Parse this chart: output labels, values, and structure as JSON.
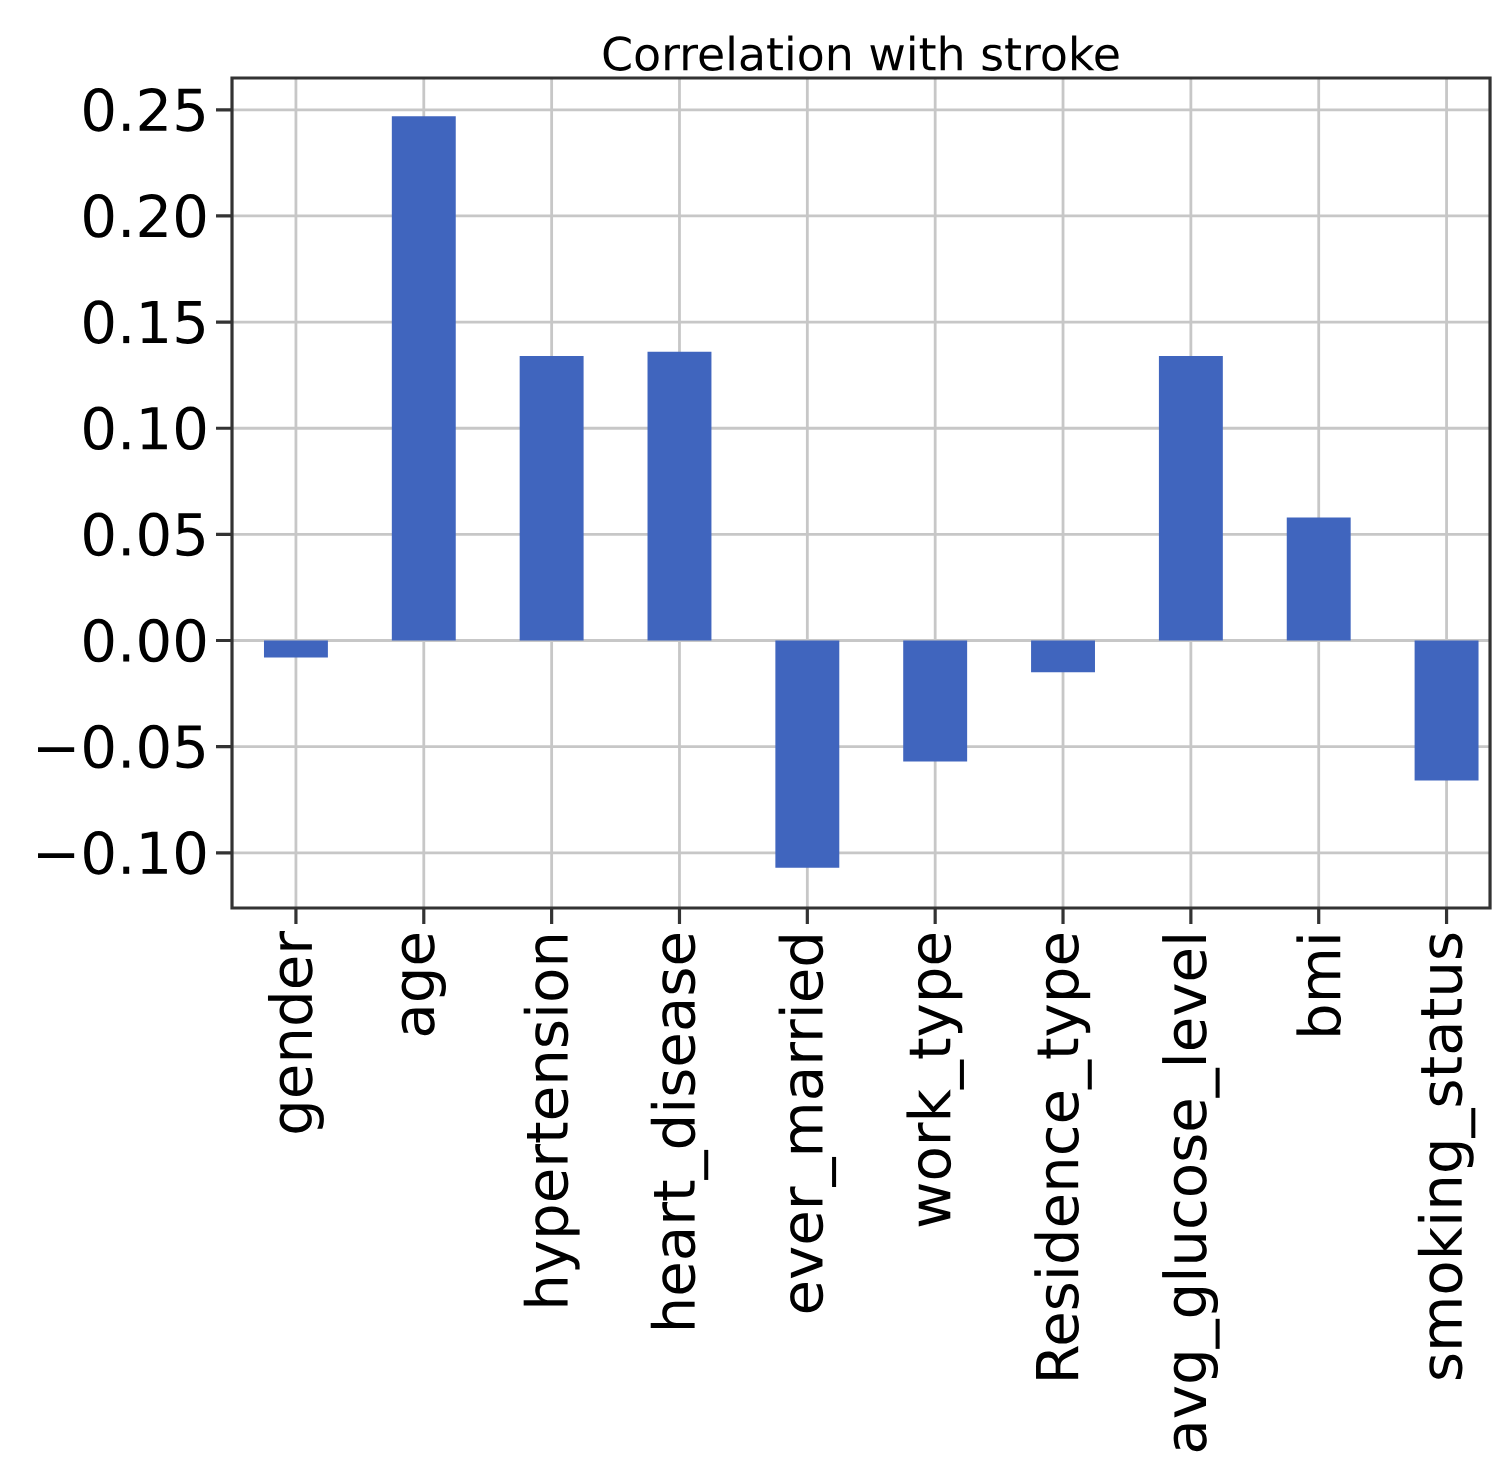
{
  "chart_data": {
    "type": "bar",
    "title": "Correlation with stroke",
    "categories": [
      "gender",
      "age",
      "hypertension",
      "heart_disease",
      "ever_married",
      "work_type",
      "Residence_type",
      "avg_glucose_level",
      "bmi",
      "smoking_status"
    ],
    "values": [
      -0.008,
      0.247,
      0.134,
      0.136,
      -0.107,
      -0.057,
      -0.015,
      0.134,
      0.058,
      -0.066
    ],
    "color": "#4065be",
    "ylim": [
      -0.126,
      0.265
    ],
    "yticks": [
      {
        "value": -0.1,
        "label": "−0.10"
      },
      {
        "value": -0.05,
        "label": "−0.05"
      },
      {
        "value": 0.0,
        "label": "0.00"
      },
      {
        "value": 0.05,
        "label": "0.05"
      },
      {
        "value": 0.1,
        "label": "0.10"
      },
      {
        "value": 0.15,
        "label": "0.15"
      },
      {
        "value": 0.2,
        "label": "0.20"
      },
      {
        "value": 0.25,
        "label": "0.25"
      }
    ],
    "grid": true
  }
}
